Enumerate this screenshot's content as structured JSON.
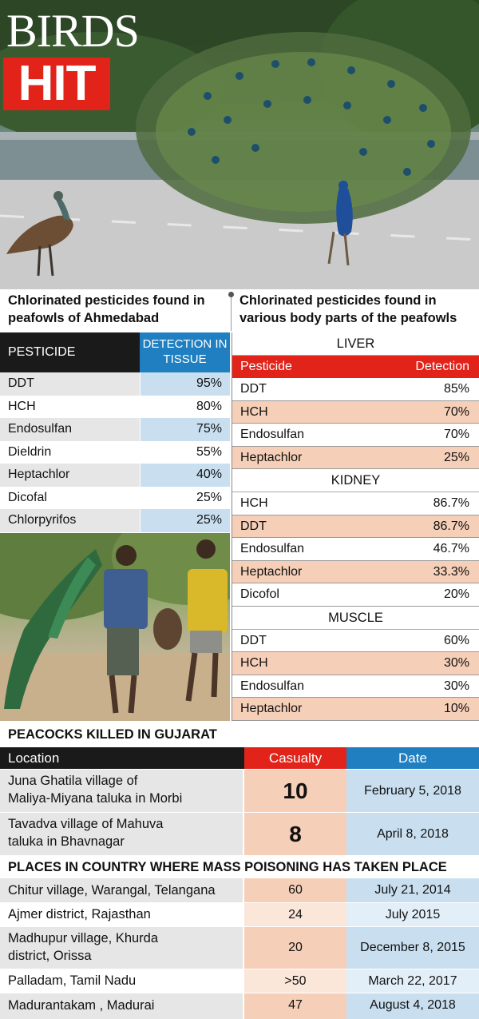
{
  "header": {
    "title_line1": "BIRDS",
    "title_line2": "HIT"
  },
  "tissue_section": {
    "heading": "Chlorinated pesticides found in peafowls of Ahmedabad",
    "col_pesticide": "PESTICIDE",
    "col_detection": "DETECTION IN TISSUE",
    "rows": [
      {
        "pesticide": "DDT",
        "detection": "95%"
      },
      {
        "pesticide": "HCH",
        "detection": "80%"
      },
      {
        "pesticide": "Endosulfan",
        "detection": "75%"
      },
      {
        "pesticide": "Dieldrin",
        "detection": "55%"
      },
      {
        "pesticide": "Heptachlor",
        "detection": "40%"
      },
      {
        "pesticide": "Dicofal",
        "detection": "25%"
      },
      {
        "pesticide": "Chlorpyrifos",
        "detection": "25%"
      }
    ]
  },
  "body_section": {
    "heading": "Chlorinated pesticides found in various body parts of the peafowls",
    "col_pesticide": "Pesticide",
    "col_detection": "Detection",
    "groups": [
      {
        "name": "LIVER",
        "rows": [
          {
            "pesticide": "DDT",
            "detection": "85%"
          },
          {
            "pesticide": "HCH",
            "detection": "70%"
          },
          {
            "pesticide": "Endosulfan",
            "detection": "70%"
          },
          {
            "pesticide": "Heptachlor",
            "detection": "25%"
          }
        ]
      },
      {
        "name": "KIDNEY",
        "rows": [
          {
            "pesticide": "HCH",
            "detection": "86.7%"
          },
          {
            "pesticide": "DDT",
            "detection": "86.7%"
          },
          {
            "pesticide": "Endosulfan",
            "detection": "46.7%"
          },
          {
            "pesticide": "Heptachlor",
            "detection": "33.3%"
          },
          {
            "pesticide": "Dicofol",
            "detection": "20%"
          }
        ]
      },
      {
        "name": "MUSCLE",
        "rows": [
          {
            "pesticide": "DDT",
            "detection": "60%"
          },
          {
            "pesticide": "HCH",
            "detection": "30%"
          },
          {
            "pesticide": "Endosulfan",
            "detection": "30%"
          },
          {
            "pesticide": "Heptachlor",
            "detection": "10%"
          }
        ]
      }
    ]
  },
  "killed_section": {
    "heading": "PEACOCKS KILLED IN GUJARAT",
    "col_location": "Location",
    "col_casualty": "Casualty",
    "col_date": "Date",
    "rows": [
      {
        "location_line1": "Juna Ghatila village of",
        "location_line2": "Maliya-Miyana taluka in Morbi",
        "casualty": "10",
        "date": "February 5, 2018"
      },
      {
        "location_line1": "Tavadva village of Mahuva",
        "location_line2": "taluka in Bhavnagar",
        "casualty": "8",
        "date": "April 8, 2018"
      }
    ]
  },
  "mass_section": {
    "heading": "PLACES IN COUNTRY WHERE MASS POISONING HAS TAKEN PLACE",
    "rows": [
      {
        "location_line1": "Chitur village, Warangal, Telangana",
        "location_line2": "",
        "casualty": "60",
        "date": "July 21, 2014"
      },
      {
        "location_line1": "Ajmer district, Rajasthan",
        "location_line2": "",
        "casualty": "24",
        "date": "July 2015"
      },
      {
        "location_line1": "Madhupur village, Khurda",
        "location_line2": "district, Orissa",
        "casualty": "20",
        "date": "December 8, 2015"
      },
      {
        "location_line1": "Palladam, Tamil Nadu",
        "location_line2": "",
        "casualty": ">50",
        "date": "March 22, 2017"
      },
      {
        "location_line1": "Madurantakam , Madurai",
        "location_line2": "",
        "casualty": "47",
        "date": "August 4, 2018"
      }
    ]
  }
}
